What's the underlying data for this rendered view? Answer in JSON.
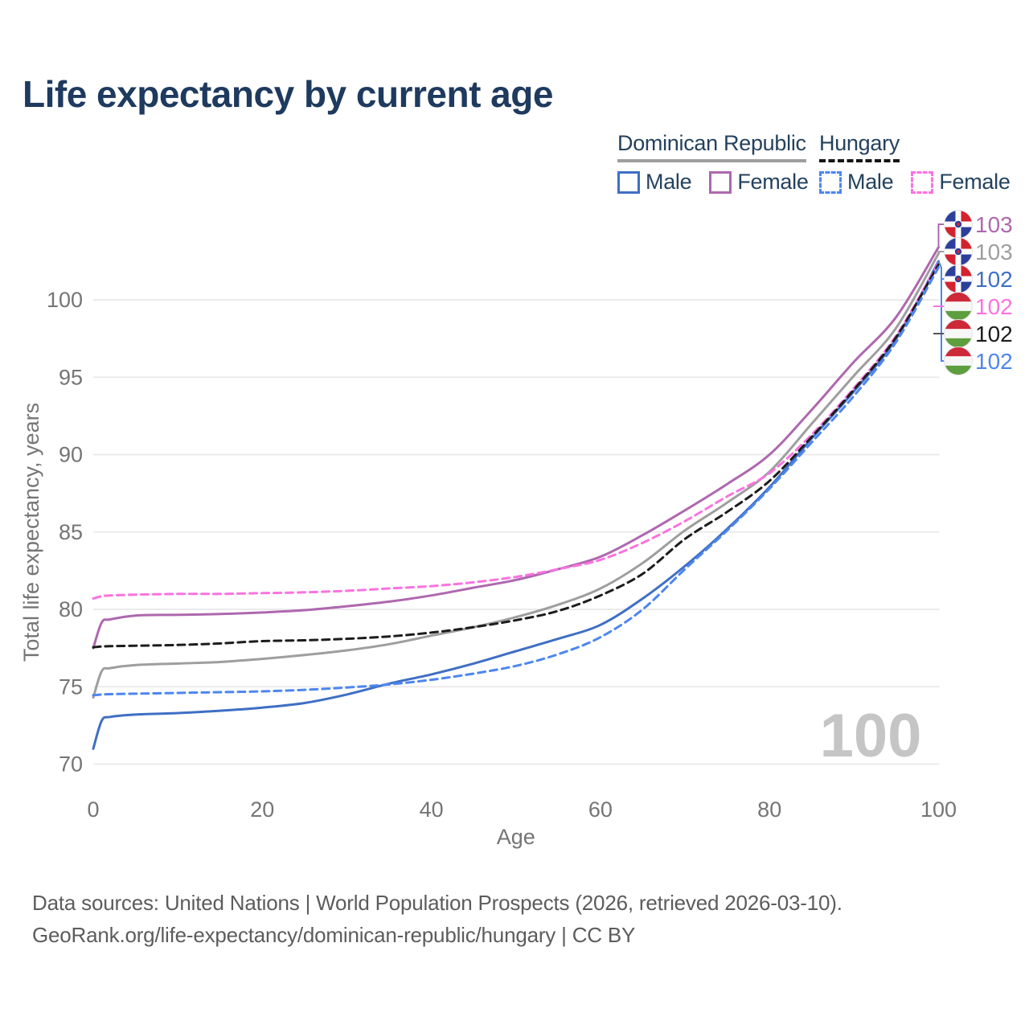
{
  "title": "Life expectancy by current age",
  "legend": {
    "groups": [
      {
        "label": "Dominican Republic",
        "line_style": "solid",
        "underline_color": "#9e9e9e",
        "items": [
          {
            "label": "Male",
            "color": "#3f6fc4",
            "dashed": false
          },
          {
            "label": "Female",
            "color": "#ae68ae",
            "dashed": false
          }
        ]
      },
      {
        "label": "Hungary",
        "line_style": "dashed",
        "underline_color": "#141414",
        "items": [
          {
            "label": "Male",
            "color": "#4d86ee",
            "dashed": true
          },
          {
            "label": "Female",
            "color": "#f973e1",
            "dashed": true
          }
        ]
      }
    ]
  },
  "chart_data": {
    "type": "line",
    "title": "Life expectancy by current age",
    "xlabel": "Age",
    "ylabel": "Total life expectancy, years",
    "xlim": [
      0,
      100
    ],
    "ylim": [
      70,
      103.5
    ],
    "xticks": [
      0,
      20,
      40,
      60,
      80,
      100
    ],
    "yticks": [
      70,
      75,
      80,
      85,
      90,
      95,
      100
    ],
    "grid": "horizontal-only",
    "legend_position": "top-right",
    "watermark": "100",
    "x": [
      0,
      1,
      2,
      5,
      10,
      15,
      20,
      25,
      30,
      35,
      40,
      45,
      50,
      55,
      60,
      65,
      70,
      75,
      80,
      85,
      90,
      95,
      100
    ],
    "series": [
      {
        "name": "Dominican Republic Female",
        "country": "Dominican Republic",
        "sex": "Female",
        "color": "#ae68ae",
        "dashed": false,
        "end_value": 103,
        "values": [
          77.5,
          79.15,
          79.35,
          79.6,
          79.65,
          79.7,
          79.8,
          79.95,
          80.2,
          80.5,
          80.9,
          81.4,
          81.9,
          82.6,
          83.4,
          84.8,
          86.4,
          88.1,
          90.0,
          92.9,
          96.0,
          98.9,
          103.4
        ]
      },
      {
        "name": "Dominican Republic Total",
        "country": "Dominican Republic",
        "sex": "Total",
        "color": "#9e9e9e",
        "dashed": false,
        "end_value": 103,
        "values": [
          74.3,
          76.0,
          76.2,
          76.4,
          76.5,
          76.6,
          76.8,
          77.05,
          77.35,
          77.75,
          78.3,
          78.85,
          79.5,
          80.3,
          81.35,
          83.0,
          85.1,
          86.9,
          88.9,
          92.0,
          95.1,
          98.2,
          103.0
        ]
      },
      {
        "name": "Dominican Republic Male",
        "country": "Dominican Republic",
        "sex": "Male",
        "color": "#3f6fc4",
        "dashed": false,
        "end_value": 102,
        "values": [
          71.0,
          72.8,
          73.05,
          73.2,
          73.3,
          73.45,
          73.65,
          73.95,
          74.5,
          75.2,
          75.8,
          76.5,
          77.3,
          78.1,
          79.0,
          80.7,
          82.8,
          85.2,
          87.9,
          91.05,
          94.1,
          97.5,
          102.5
        ]
      },
      {
        "name": "Hungary Female",
        "country": "Hungary",
        "sex": "Female",
        "color": "#f973e1",
        "dashed": true,
        "end_value": 102,
        "values": [
          80.7,
          80.85,
          80.9,
          80.95,
          81.0,
          81.0,
          81.05,
          81.1,
          81.2,
          81.35,
          81.5,
          81.75,
          82.1,
          82.6,
          83.2,
          84.3,
          85.7,
          87.3,
          88.8,
          91.3,
          94.3,
          97.7,
          102.4
        ]
      },
      {
        "name": "Hungary Total",
        "country": "Hungary",
        "sex": "Total",
        "color": "#1c1c1c",
        "dashed": true,
        "end_value": 102,
        "values": [
          77.55,
          77.6,
          77.62,
          77.65,
          77.7,
          77.8,
          77.95,
          78.0,
          78.1,
          78.25,
          78.5,
          78.85,
          79.3,
          79.9,
          80.9,
          82.3,
          84.55,
          86.3,
          88.3,
          91.15,
          94.2,
          97.6,
          102.3
        ]
      },
      {
        "name": "Hungary Male",
        "country": "Hungary",
        "sex": "Male",
        "color": "#4d86ee",
        "dashed": true,
        "end_value": 102,
        "values": [
          74.45,
          74.5,
          74.52,
          74.55,
          74.6,
          74.65,
          74.7,
          74.8,
          74.95,
          75.15,
          75.45,
          75.85,
          76.35,
          77.1,
          78.2,
          80.0,
          82.6,
          85.1,
          87.8,
          90.8,
          93.8,
          97.3,
          102.1
        ]
      }
    ]
  },
  "end_labels": [
    {
      "value": "103",
      "color": "#ae68ae",
      "flag": "dominican-republic"
    },
    {
      "value": "103",
      "color": "#9e9e9e",
      "flag": "dominican-republic"
    },
    {
      "value": "102",
      "color": "#3f6fc4",
      "flag": "dominican-republic"
    },
    {
      "value": "102",
      "color": "#f973e1",
      "flag": "hungary"
    },
    {
      "value": "102",
      "color": "#1c1c1c",
      "flag": "hungary"
    },
    {
      "value": "102",
      "color": "#4d86ee",
      "flag": "hungary"
    }
  ],
  "footer": {
    "line1": "Data sources: United Nations | World Population Prospects (2026, retrieved 2026-03-10).",
    "line2": "GeoRank.org/life-expectancy/dominican-republic/hungary | CC BY"
  },
  "colors": {
    "title_text": "#1e3a5f",
    "legend_text": "#24425e",
    "axis_text": "#757575",
    "gridline": "#ebebeb",
    "watermark": "#c5c5c5",
    "footer_text": "#5c5c5c",
    "flag_dr_blue": "#2c3f9b",
    "flag_dr_red": "#d2232f",
    "flag_hu_red": "#ce2939",
    "flag_hu_white": "#f7f7f7",
    "flag_hu_green": "#5d9e3e"
  }
}
